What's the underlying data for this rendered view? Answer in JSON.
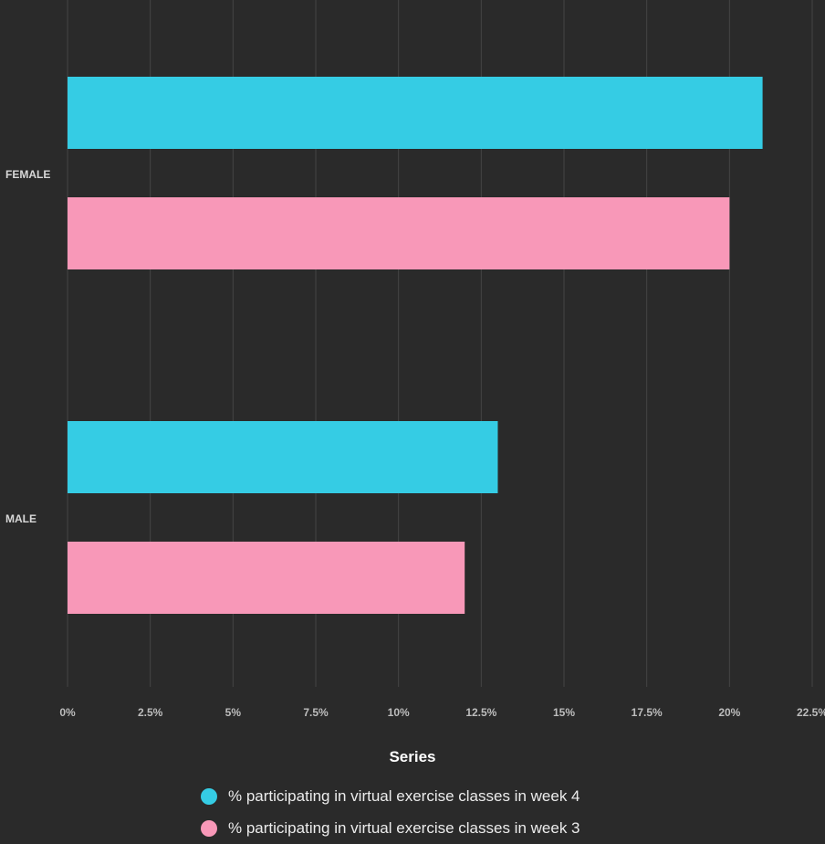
{
  "chart_data": {
    "type": "bar",
    "orientation": "horizontal",
    "categories": [
      "FEMALE",
      "MALE"
    ],
    "series": [
      {
        "name": "% participating in virtual exercise classes in week 4",
        "color": "#35cce4",
        "values": [
          21,
          13
        ]
      },
      {
        "name": "% participating in virtual exercise classes in week 3",
        "color": "#f898b8",
        "values": [
          20,
          12
        ]
      }
    ],
    "xlim": [
      0,
      22.5
    ],
    "x_ticks": [
      "0%",
      "2.5%",
      "5%",
      "7.5%",
      "10%",
      "12.5%",
      "15%",
      "17.5%",
      "20%",
      "22.5%"
    ],
    "grid": true,
    "legend": {
      "title": "Series",
      "position": "bottom"
    },
    "xlabel": "",
    "ylabel": "",
    "title": ""
  },
  "colors": {
    "background": "#2a2a2a",
    "grid": "#444444"
  }
}
